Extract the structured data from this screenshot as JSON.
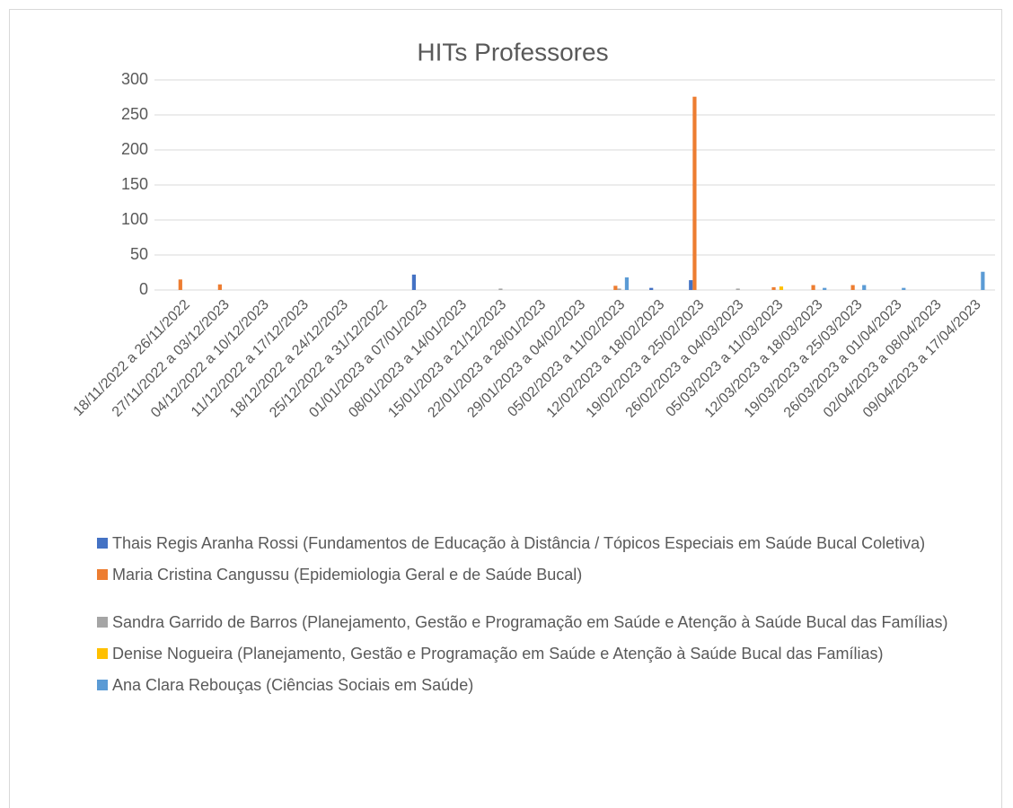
{
  "chart_data": {
    "type": "bar",
    "title": "HITs Professores",
    "categories": [
      "18/11/2022 a 26/11/2022",
      "27/11/2022 a 03/12/2023",
      "04/12/2022 a 10/12/2023",
      "11/12/2022 a 17/12/2023",
      "18/12/2022 a 24/12/2023",
      "25/12/2022 a 31/12/2022",
      "01/01/2023 a 07/01/2023",
      "08/01/2023 a 14/01/2023",
      "15/01/2023 a 21/12/2023",
      "22/01/2023 a 28/01/2023",
      "29/01/2023 a 04/02/2023",
      "05/02/2023 a 11/02/2023",
      "12/02/2023 a 18/02/2023",
      "19/02/2023 a 25/02/2023",
      "26/02/2023 a 04/03/2023",
      "05/03/2023 a 11/03/2023",
      "12/03/2023 a 18/03/2023",
      "19/03/2023 a 25/03/2023",
      "26/03/2023 a 01/04/2023",
      "02/04/2023 a 08/04/2023",
      "09/04/2023 a 17/04/2023"
    ],
    "series": [
      {
        "name": "Thais Regis Aranha Rossi (Fundamentos de Educação à Distância / Tópicos Especiais em Saúde Bucal Coletiva)",
        "color": "#4472c4",
        "values": [
          0,
          0,
          0,
          0,
          0,
          0,
          22,
          0,
          0,
          0,
          0,
          0,
          3,
          14,
          0,
          0,
          0,
          0,
          0,
          0,
          0
        ]
      },
      {
        "name": "Maria Cristina Cangussu (Epidemiologia Geral e de Saúde Bucal)",
        "color": "#ed7d31",
        "values": [
          15,
          8,
          0,
          0,
          0,
          0,
          0,
          0,
          0,
          0,
          0,
          6,
          0,
          276,
          0,
          4,
          7,
          7,
          0,
          0,
          0
        ]
      },
      {
        "name": "Sandra Garrido de Barros (Planejamento, Gestão e Programação em Saúde e Atenção à Saúde Bucal das Famílias)",
        "color": "#a5a5a5",
        "values": [
          0,
          0,
          0,
          0,
          0,
          0,
          0,
          0,
          2,
          0,
          0,
          2,
          0,
          0,
          2,
          0,
          0,
          0,
          0,
          0,
          0
        ]
      },
      {
        "name": "Denise Nogueira (Planejamento, Gestão e Programação em Saúde e Atenção à Saúde Bucal das Famílias)",
        "color": "#ffc000",
        "values": [
          0,
          0,
          0,
          0,
          0,
          0,
          0,
          0,
          0,
          0,
          0,
          0,
          0,
          0,
          0,
          5,
          0,
          0,
          0,
          0,
          0
        ]
      },
      {
        "name": "Ana Clara Rebouças (Ciências Sociais em Saúde)",
        "color": "#5b9bd5",
        "values": [
          0,
          0,
          0,
          0,
          0,
          0,
          0,
          0,
          0,
          0,
          0,
          18,
          0,
          0,
          0,
          0,
          3,
          7,
          3,
          0,
          26
        ]
      }
    ],
    "ylim": [
      0,
      300
    ],
    "yticks": [
      0,
      50,
      100,
      150,
      200,
      250,
      300
    ],
    "grid": true
  }
}
